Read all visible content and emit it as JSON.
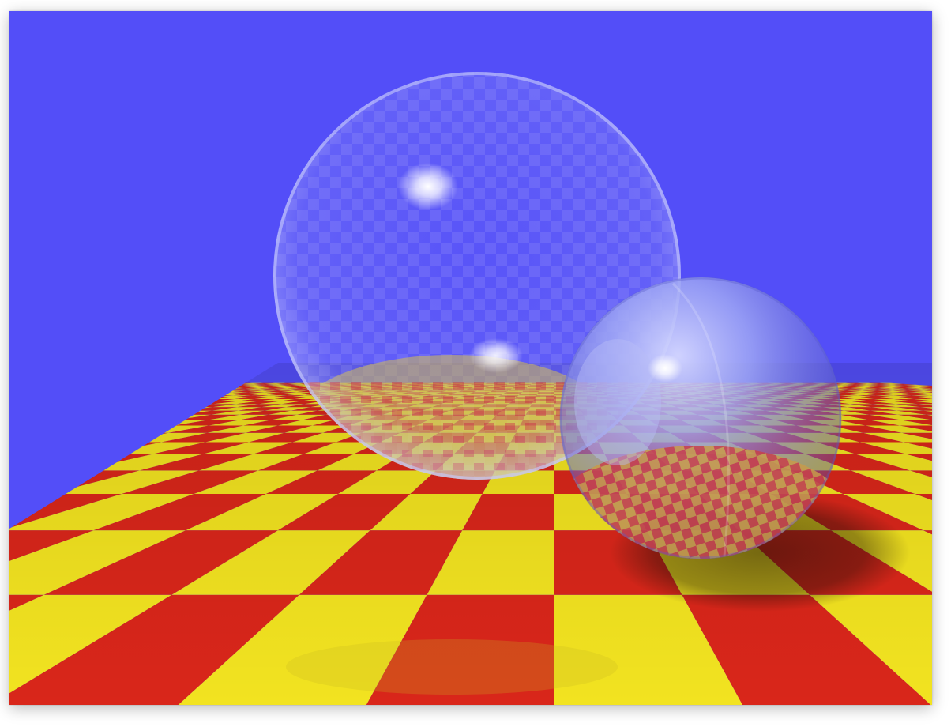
{
  "image": {
    "subject": "ray-traced-scene",
    "colors": {
      "sky": "#534EF8",
      "tile_red": "#D9261A",
      "tile_yellow": "#F2E320",
      "sphere_tint": "#9EA6F4"
    }
  }
}
